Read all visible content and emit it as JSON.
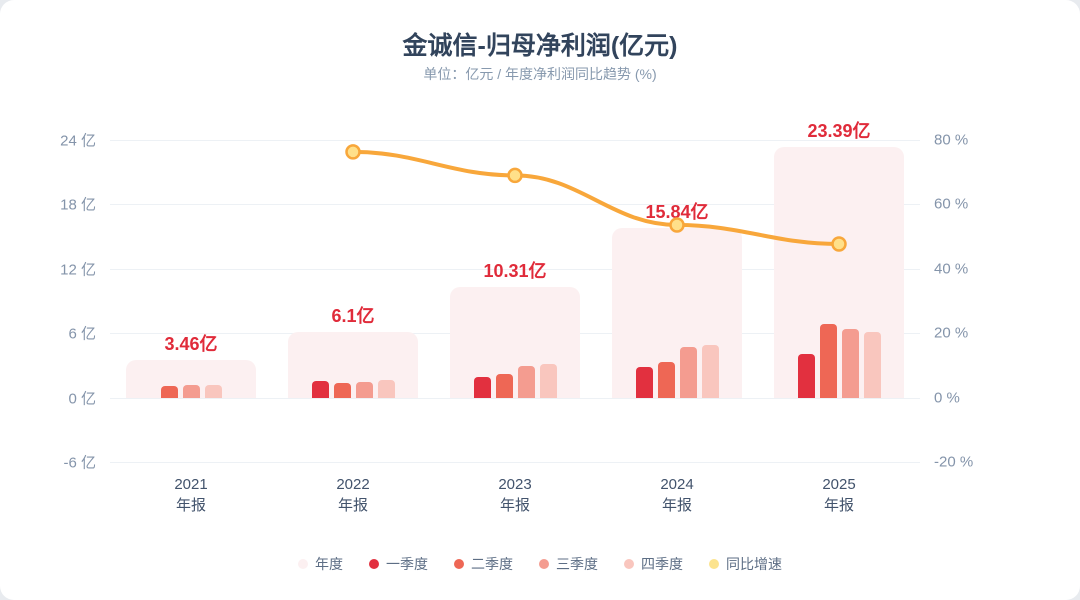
{
  "header": {
    "title": "金诚信-归母净利润(亿元)",
    "subtitle": "单位：亿元 / 年度净利润同比趋势 (%)"
  },
  "chart_data": {
    "type": "bar+line",
    "title": "金诚信-归母净利润(亿元)",
    "subtitle": "单位：亿元 / 年度净利润同比趋势 (%)",
    "legend_position": "bottom",
    "grid": true,
    "categories": [
      {
        "year": "2021",
        "period": "年报"
      },
      {
        "year": "2022",
        "period": "年报"
      },
      {
        "year": "2023",
        "period": "年报"
      },
      {
        "year": "2024",
        "period": "年报"
      },
      {
        "year": "2025",
        "period": "年报"
      }
    ],
    "left_axis": {
      "unit": "亿",
      "min": -6,
      "max": 24,
      "ticks": [
        24,
        18,
        12,
        6,
        0,
        -6
      ]
    },
    "right_axis": {
      "unit": "%",
      "min": -20,
      "max": 80,
      "ticks": [
        80,
        60,
        40,
        20,
        0,
        -20
      ]
    },
    "series": [
      {
        "name": "年度",
        "role": "annual",
        "type": "bar",
        "color": "#fcf0f1",
        "label_color": "#e02b3a",
        "values": [
          3.46,
          6.1,
          10.31,
          15.84,
          23.39
        ],
        "labels": [
          "3.46亿",
          "6.1亿",
          "10.31亿",
          "15.84亿",
          "23.39亿"
        ]
      },
      {
        "name": "一季度",
        "role": "quarter",
        "type": "bar",
        "color": "#e2303f",
        "values": [
          null,
          1.58,
          1.95,
          2.85,
          4.1
        ]
      },
      {
        "name": "二季度",
        "role": "quarter",
        "type": "bar",
        "color": "#ee6755",
        "values": [
          1.08,
          1.4,
          2.21,
          3.35,
          6.85
        ]
      },
      {
        "name": "三季度",
        "role": "quarter",
        "type": "bar",
        "color": "#f49c90",
        "values": [
          1.22,
          1.45,
          2.98,
          4.75,
          6.35
        ]
      },
      {
        "name": "四季度",
        "role": "quarter",
        "type": "bar",
        "color": "#f9c6be",
        "values": [
          1.16,
          1.67,
          3.17,
          4.89,
          6.09
        ]
      },
      {
        "name": "同比增速",
        "role": "growth-line",
        "type": "line",
        "axis": "right",
        "color": "#f8a73b",
        "marker_fill": "#ffe08a",
        "legend_color": "#fce38d",
        "values": [
          null,
          76.3,
          69.0,
          53.6,
          47.7
        ]
      }
    ]
  }
}
